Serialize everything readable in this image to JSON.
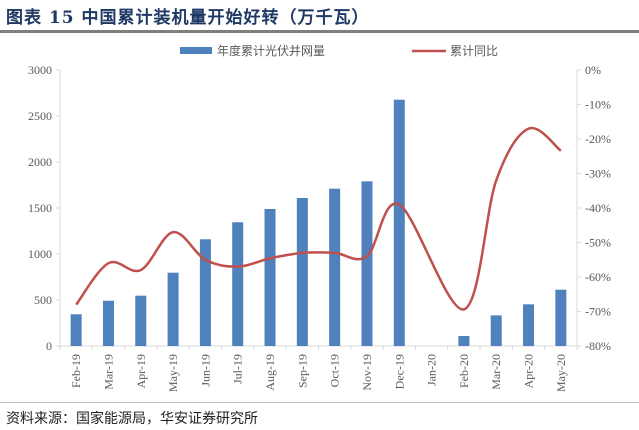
{
  "title": "图表 15 中国累计装机量开始好转（万千瓦）",
  "source": "资料来源：国家能源局，华安证券研究所",
  "chart_data": {
    "type": "bar+line",
    "categories": [
      "Feb-19",
      "Mar-19",
      "Apr-19",
      "May-19",
      "Jun-19",
      "Jul-19",
      "Aug-19",
      "Sep-19",
      "Oct-19",
      "Nov-19",
      "Dec-19",
      "Jan-20",
      "Feb-20",
      "Mar-20",
      "Apr-20",
      "May-20"
    ],
    "series": [
      {
        "name": "年度累计光伏并网量",
        "type": "bar",
        "axis": "left",
        "color": "#4f81bd",
        "values": [
          345,
          492,
          547,
          797,
          1160,
          1345,
          1489,
          1609,
          1710,
          1790,
          2677,
          null,
          109,
          333,
          453,
          612
        ]
      },
      {
        "name": "累计同比",
        "type": "line",
        "axis": "right",
        "color": "#c0504d",
        "values": [
          -68,
          -56,
          -58,
          -47,
          -55,
          -57,
          -54.6,
          -53,
          -53,
          -54,
          -39,
          null,
          -69.4,
          -32,
          -17,
          -23.4
        ]
      }
    ],
    "left_axis": {
      "min": 0,
      "max": 3000,
      "ticks": [
        "0",
        "500",
        "1000",
        "1500",
        "2000",
        "2500",
        "3000"
      ]
    },
    "right_axis": {
      "min": -80,
      "max": 0,
      "ticks": [
        "-80%",
        "-70%",
        "-60%",
        "-50%",
        "-40%",
        "-30%",
        "-20%",
        "-10%",
        "0%"
      ]
    },
    "legend": "top",
    "grid": false
  }
}
